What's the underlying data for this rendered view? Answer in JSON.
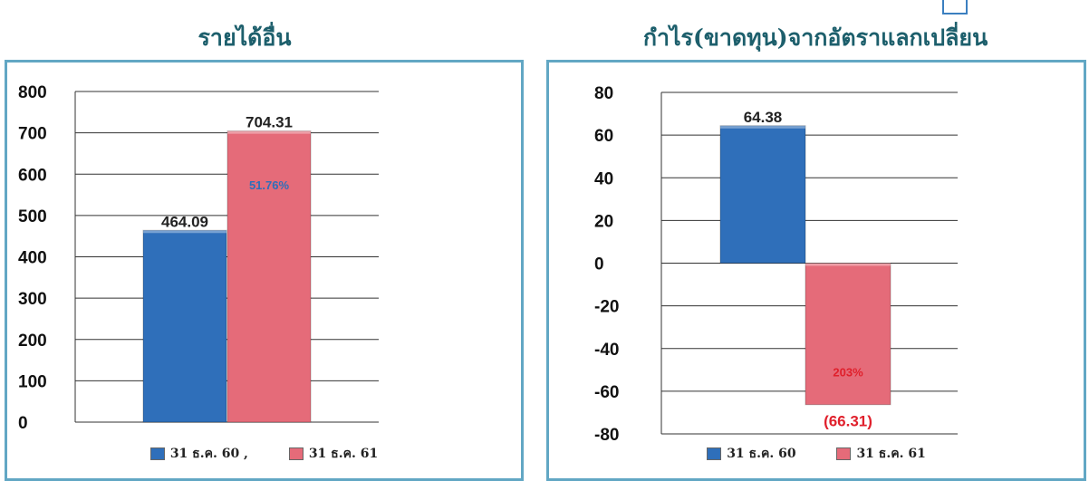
{
  "colors": {
    "series1": "#2f6fba",
    "series2": "#e56b79",
    "frame": "#62a7c4",
    "pct_blue": "#2f6fba",
    "pct_red": "#e0202c"
  },
  "chart_data": [
    {
      "type": "bar",
      "title": "รายได้อื่น",
      "categories": [
        "31 ธ.ค. 60",
        "31 ธ.ค. 61"
      ],
      "series": [
        {
          "name": "31 ธ.ค. 60",
          "value": 464.09,
          "label": "464.09"
        },
        {
          "name": "31 ธ.ค. 61",
          "value": 704.31,
          "label": "704.31",
          "annotation": "51.76%"
        }
      ],
      "yticks": [
        "800",
        "700",
        "600",
        "500",
        "400",
        "300",
        "200",
        "100",
        "0"
      ],
      "ylim": [
        0,
        800
      ],
      "grid": true,
      "legend": "bottom",
      "legend_labels": [
        "31 ธ.ค. 60 ,",
        "31 ธ.ค. 61"
      ]
    },
    {
      "type": "bar",
      "title": "กำไร(ขาดทุน)จากอัตราแลกเปลี่ยน",
      "categories": [
        "31 ธ.ค. 60",
        "31 ธ.ค. 61"
      ],
      "series": [
        {
          "name": "31 ธ.ค. 60",
          "value": 64.38,
          "label": "64.38"
        },
        {
          "name": "31 ธ.ค. 61",
          "value": -66.31,
          "label": "(66.31)",
          "annotation": "203%"
        }
      ],
      "yticks": [
        "80",
        "60",
        "40",
        "20",
        "0",
        "-20",
        "-40",
        "-60",
        "-80"
      ],
      "ylim": [
        -80,
        80
      ],
      "grid": true,
      "legend": "bottom",
      "legend_labels": [
        "31 ธ.ค. 60",
        "31 ธ.ค. 61"
      ]
    }
  ]
}
